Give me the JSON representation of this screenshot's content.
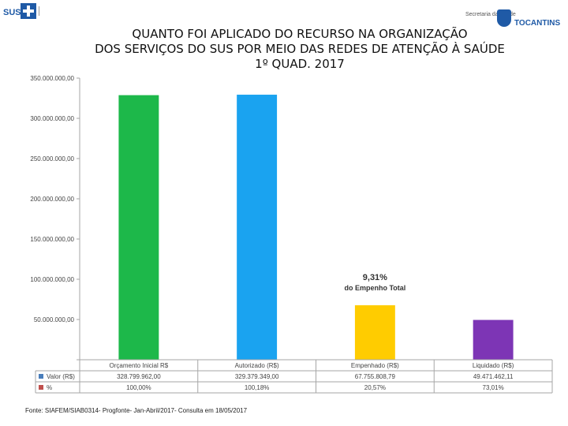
{
  "header": {
    "title_lines": [
      "QUANTO FOI APLICADO DO RECURSO NA ORGANIZAÇÃO",
      "DOS SERVIÇOS DO SUS POR MEIO DAS REDES DE ATENÇÃO À SAÚDE",
      "1º QUAD. 2017"
    ],
    "logo_left_text": "SUS",
    "logo_right_secretaria": "Secretaria da Saúde",
    "logo_right_brand": "TOCANTINS"
  },
  "chart_data": {
    "type": "bar",
    "categories": [
      "Orçamento Inicial R$",
      "Autorizado (R$)",
      "Empenhado (R$)",
      "Liquidado (R$)"
    ],
    "values": [
      328799962.0,
      329379349.0,
      67755808.79,
      49471462.11
    ],
    "value_labels": [
      "328.799.962,00",
      "329.379.349,00",
      "67.755.808,79",
      "49.471.462,11"
    ],
    "percent_labels": [
      "100,00%",
      "100,18%",
      "20,57%",
      "73,01%"
    ],
    "colors": [
      "#1db84a",
      "#1aa3f0",
      "#ffcc00",
      "#7d35b5"
    ],
    "ylim": [
      0,
      350000000
    ],
    "yticks": [
      0,
      50000000,
      100000000,
      150000000,
      200000000,
      250000000,
      300000000,
      350000000
    ],
    "ytick_labels": [
      "",
      "50.000.000,00",
      "100.000.000,00",
      "150.000.000,00",
      "200.000.000,00",
      "250.000.000,00",
      "300.000.000,00",
      "350.000.000,00"
    ],
    "grid": false,
    "annotation": {
      "line1": "9,31%",
      "line2": "do Empenho Total",
      "category_index": 2
    },
    "table_rows": [
      {
        "legend": "Valor (R$)",
        "color": "#4a7ebb"
      },
      {
        "legend": "%",
        "color": "#c0504d"
      }
    ]
  },
  "footer": {
    "source": "Fonte: SIAFEM/SIAB0314- Progfonte- Jan-Abril/2017- Consulta em 18/05/2017"
  }
}
